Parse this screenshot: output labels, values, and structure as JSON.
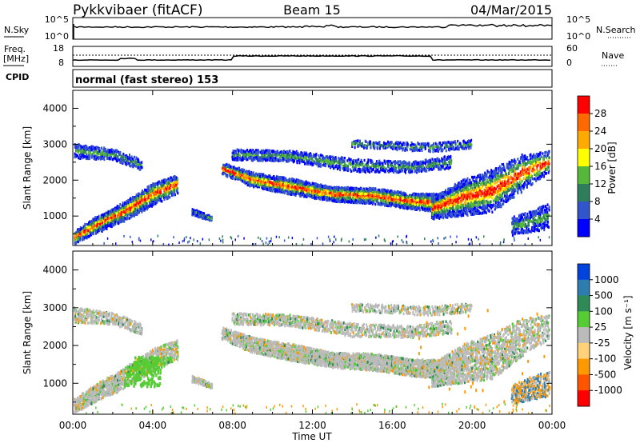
{
  "header": {
    "radar": "Pykkvibaer (fitACF)",
    "beam": "Beam 15",
    "date": "04/Mar/2015"
  },
  "panels": {
    "nsky_label": "N.Sky",
    "nsearch_label": "N.Search",
    "freq_label_top": "Freq.",
    "freq_label_unit": "[MHz]",
    "nave_label": "Nave",
    "cpid_label": "CPID",
    "cpid_text": "normal (fast stereo) 153",
    "nsky_ticks": [
      "10^5",
      "10^0"
    ],
    "nsearch_ticks": [
      "10^5",
      "10^0"
    ],
    "freq_ticks": [
      "18",
      "8"
    ],
    "nave_ticks": [
      "60",
      "0"
    ]
  },
  "chart_data": [
    {
      "type": "heatmap",
      "panel": "power",
      "ylabel": "Slant Range [km]",
      "yticks": [
        1000,
        2000,
        3000,
        4000
      ],
      "ylim": [
        180,
        4500
      ],
      "colorbar_label": "Power [dB]",
      "colorbar_ticks": [
        "28",
        "24",
        "20",
        "16",
        "12",
        "8",
        "4"
      ],
      "colorbar_colors": [
        "#ff0000",
        "#ff6a00",
        "#ffaa00",
        "#ffff00",
        "#55b83a",
        "#2e7d5b",
        "#3355cc",
        "#0000ff"
      ]
    },
    {
      "type": "heatmap",
      "panel": "velocity",
      "ylabel": "Slant Range [km]",
      "yticks": [
        1000,
        2000,
        3000,
        4000
      ],
      "ylim": [
        180,
        4500
      ],
      "colorbar_label": "Velocity [m s⁻¹]",
      "colorbar_ticks": [
        "1000",
        "500",
        "100",
        "25",
        "-25",
        "-100",
        "-500",
        "-1000"
      ],
      "colorbar_colors": [
        "#0044dd",
        "#2e7db0",
        "#2e8b57",
        "#55cc33",
        "#bbbbbb",
        "#ffd27a",
        "#ff9900",
        "#ff5500",
        "#ff0000"
      ]
    }
  ],
  "xaxis": {
    "xlabel": "Time UT",
    "ticks": [
      "00:00",
      "04:00",
      "08:00",
      "12:00",
      "16:00",
      "20:00",
      "00:00"
    ]
  }
}
